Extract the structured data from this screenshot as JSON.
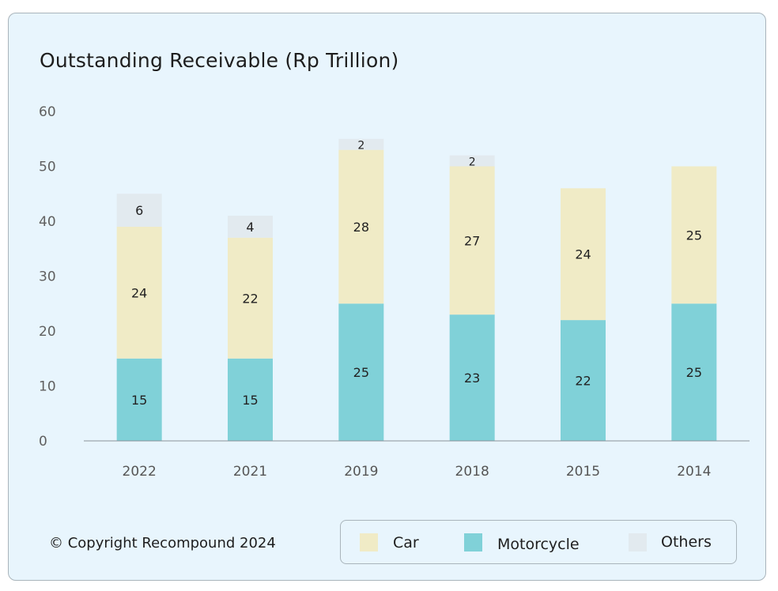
{
  "chart_data": {
    "type": "bar",
    "stacked": true,
    "title": "Outstanding Receivable (Rp Trillion)",
    "xlabel": "",
    "ylabel": "",
    "categories": [
      "2022",
      "2021",
      "2019",
      "2018",
      "2015",
      "2014"
    ],
    "series": [
      {
        "name": "Motorcycle",
        "color": "#80d1d8",
        "values": [
          15,
          15,
          25,
          23,
          22,
          25
        ]
      },
      {
        "name": "Car",
        "color": "#f0ebc6",
        "values": [
          24,
          22,
          28,
          27,
          24,
          25
        ]
      },
      {
        "name": "Others",
        "color": "#e2eaef",
        "values": [
          6,
          4,
          2,
          2,
          0,
          0
        ]
      }
    ],
    "ylim": [
      0,
      60
    ],
    "yticks": [
      0,
      10,
      20,
      30,
      40,
      50,
      60
    ],
    "grid": false,
    "legend_position": "bottom-right"
  },
  "footer": {
    "copyright": "© Copyright Recompound 2024"
  },
  "legend": [
    {
      "label": "Car",
      "color": "#f0ebc6"
    },
    {
      "label": "Motorcycle",
      "color": "#80d1d8"
    },
    {
      "label": "Others",
      "color": "#e2eaef"
    }
  ]
}
